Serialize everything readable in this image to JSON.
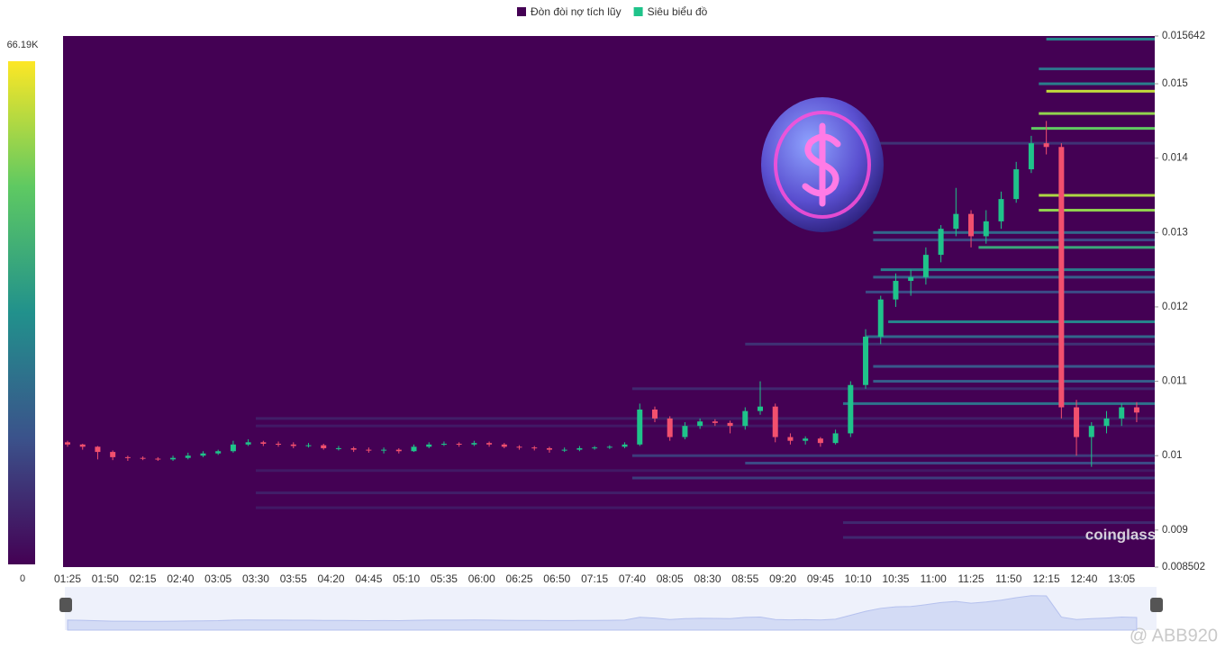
{
  "chart_data": {
    "type": "candlestick-heatmap",
    "legend": [
      {
        "name": "Đòn đòi nợ tích lũy",
        "color": "#440154"
      },
      {
        "name": "Siêu biểu đồ",
        "color": "#1fc38a"
      }
    ],
    "colorbar_lim": [
      0,
      66190
    ],
    "colorbar_ticks": [
      {
        "value": 66190,
        "label": "66.19K"
      },
      0
    ],
    "colormap": [
      "#440154",
      "#3b528b",
      "#21918c",
      "#5ec962",
      "#fde725"
    ],
    "ylim": [
      0.008502,
      0.015642
    ],
    "yticks": [
      0.015642,
      0.015,
      0.014,
      0.013,
      0.012,
      0.011,
      0.01,
      0.009,
      0.008502
    ],
    "xlim": [
      "01:22",
      "13:27"
    ],
    "xticks": [
      "01:25",
      "01:50",
      "02:15",
      "02:40",
      "03:05",
      "03:30",
      "03:55",
      "04:20",
      "04:45",
      "05:10",
      "05:35",
      "06:00",
      "06:25",
      "06:50",
      "07:15",
      "07:40",
      "08:05",
      "08:30",
      "08:55",
      "09:20",
      "09:45",
      "10:10",
      "10:35",
      "11:00",
      "11:25",
      "11:50",
      "12:15",
      "12:40",
      "13:05"
    ],
    "up_color": "#1fc38a",
    "down_color": "#f2506e",
    "x": [
      "01:25",
      "01:35",
      "01:45",
      "01:55",
      "02:05",
      "02:15",
      "02:25",
      "02:35",
      "02:45",
      "02:55",
      "03:05",
      "03:15",
      "03:25",
      "03:35",
      "03:45",
      "03:55",
      "04:05",
      "04:15",
      "04:25",
      "04:35",
      "04:45",
      "04:55",
      "05:05",
      "05:15",
      "05:25",
      "05:35",
      "05:45",
      "05:55",
      "06:05",
      "06:15",
      "06:25",
      "06:35",
      "06:45",
      "06:55",
      "07:05",
      "07:15",
      "07:25",
      "07:35",
      "07:45",
      "07:55",
      "08:05",
      "08:15",
      "08:25",
      "08:35",
      "08:45",
      "08:55",
      "09:05",
      "09:15",
      "09:25",
      "09:35",
      "09:45",
      "09:55",
      "10:05",
      "10:15",
      "10:25",
      "10:35",
      "10:45",
      "10:55",
      "11:05",
      "11:15",
      "11:25",
      "11:35",
      "11:45",
      "11:55",
      "12:05",
      "12:15",
      "12:25",
      "12:35",
      "12:45",
      "12:55",
      "13:05",
      "13:15"
    ],
    "ohlc": [
      [
        0.01018,
        0.0102,
        0.01012,
        0.01015
      ],
      [
        0.01015,
        0.01016,
        0.01008,
        0.01012
      ],
      [
        0.01012,
        0.01013,
        0.00995,
        0.01005
      ],
      [
        0.01005,
        0.01007,
        0.00994,
        0.00998
      ],
      [
        0.00998,
        0.01,
        0.00993,
        0.00997
      ],
      [
        0.00997,
        0.00999,
        0.00994,
        0.00996
      ],
      [
        0.00996,
        0.00998,
        0.00993,
        0.00995
      ],
      [
        0.00995,
        0.01,
        0.00993,
        0.00997
      ],
      [
        0.00997,
        0.01004,
        0.00995,
        0.01
      ],
      [
        0.01,
        0.01006,
        0.00998,
        0.01003
      ],
      [
        0.01003,
        0.01008,
        0.01001,
        0.01006
      ],
      [
        0.01006,
        0.0102,
        0.01004,
        0.01015
      ],
      [
        0.01015,
        0.01022,
        0.01013,
        0.01018
      ],
      [
        0.01018,
        0.0102,
        0.01013,
        0.01016
      ],
      [
        0.01016,
        0.01019,
        0.01012,
        0.01015
      ],
      [
        0.01015,
        0.01018,
        0.0101,
        0.01013
      ],
      [
        0.01013,
        0.01017,
        0.01011,
        0.01014
      ],
      [
        0.01014,
        0.01016,
        0.01008,
        0.0101
      ],
      [
        0.0101,
        0.01013,
        0.01007,
        0.0101
      ],
      [
        0.0101,
        0.01012,
        0.01005,
        0.01008
      ],
      [
        0.01008,
        0.01011,
        0.01004,
        0.01007
      ],
      [
        0.01007,
        0.01011,
        0.01003,
        0.01008
      ],
      [
        0.01008,
        0.0101,
        0.01003,
        0.01006
      ],
      [
        0.01006,
        0.01015,
        0.01005,
        0.01012
      ],
      [
        0.01012,
        0.01018,
        0.0101,
        0.01015
      ],
      [
        0.01015,
        0.01019,
        0.01013,
        0.01016
      ],
      [
        0.01016,
        0.01018,
        0.01012,
        0.01015
      ],
      [
        0.01015,
        0.0102,
        0.01013,
        0.01017
      ],
      [
        0.01017,
        0.01019,
        0.01012,
        0.01015
      ],
      [
        0.01015,
        0.01017,
        0.0101,
        0.01012
      ],
      [
        0.01012,
        0.01014,
        0.01008,
        0.01011
      ],
      [
        0.01011,
        0.01013,
        0.01007,
        0.0101
      ],
      [
        0.0101,
        0.01012,
        0.01004,
        0.01008
      ],
      [
        0.01008,
        0.01011,
        0.01005,
        0.01008
      ],
      [
        0.01008,
        0.01013,
        0.01006,
        0.0101
      ],
      [
        0.0101,
        0.01013,
        0.01008,
        0.01011
      ],
      [
        0.01011,
        0.01014,
        0.01009,
        0.01012
      ],
      [
        0.01012,
        0.01018,
        0.0101,
        0.01015
      ],
      [
        0.01015,
        0.0107,
        0.01013,
        0.01062
      ],
      [
        0.01062,
        0.01066,
        0.01045,
        0.0105
      ],
      [
        0.0105,
        0.01053,
        0.0102,
        0.01025
      ],
      [
        0.01025,
        0.01045,
        0.01022,
        0.0104
      ],
      [
        0.0104,
        0.0105,
        0.01036,
        0.01046
      ],
      [
        0.01046,
        0.01049,
        0.0104,
        0.01044
      ],
      [
        0.01044,
        0.01047,
        0.0103,
        0.0104
      ],
      [
        0.0104,
        0.01065,
        0.01035,
        0.0106
      ],
      [
        0.0106,
        0.011,
        0.01055,
        0.01066
      ],
      [
        0.01066,
        0.0107,
        0.01018,
        0.01025
      ],
      [
        0.01025,
        0.0103,
        0.01015,
        0.0102
      ],
      [
        0.0102,
        0.01026,
        0.01015,
        0.01023
      ],
      [
        0.01023,
        0.01025,
        0.01012,
        0.01017
      ],
      [
        0.01017,
        0.01035,
        0.01015,
        0.0103
      ],
      [
        0.0103,
        0.011,
        0.01025,
        0.01095
      ],
      [
        0.01095,
        0.0117,
        0.0109,
        0.0116
      ],
      [
        0.0116,
        0.01215,
        0.0115,
        0.0121
      ],
      [
        0.0121,
        0.01245,
        0.012,
        0.01235
      ],
      [
        0.01235,
        0.0125,
        0.01215,
        0.0124
      ],
      [
        0.0124,
        0.0128,
        0.0123,
        0.0127
      ],
      [
        0.0127,
        0.0131,
        0.0126,
        0.01305
      ],
      [
        0.01305,
        0.0136,
        0.01295,
        0.01325
      ],
      [
        0.01325,
        0.0133,
        0.0128,
        0.01295
      ],
      [
        0.01295,
        0.0133,
        0.01285,
        0.01315
      ],
      [
        0.01315,
        0.01355,
        0.01305,
        0.01345
      ],
      [
        0.01345,
        0.01395,
        0.0134,
        0.01385
      ],
      [
        0.01385,
        0.0143,
        0.0138,
        0.0142
      ],
      [
        0.0142,
        0.0145,
        0.01405,
        0.01415
      ],
      [
        0.01415,
        0.0142,
        0.0105,
        0.01065
      ],
      [
        0.01065,
        0.01075,
        0.01,
        0.01025
      ],
      [
        0.01025,
        0.01045,
        0.00985,
        0.0104
      ],
      [
        0.0104,
        0.0106,
        0.0103,
        0.0105
      ],
      [
        0.0105,
        0.0107,
        0.0104,
        0.01065
      ],
      [
        0.01065,
        0.01072,
        0.01045,
        0.01058
      ]
    ],
    "levels": [
      {
        "price": 0.0156,
        "from": "12:15",
        "value": 30000
      },
      {
        "price": 0.0152,
        "from": "12:10",
        "value": 25000
      },
      {
        "price": 0.015,
        "from": "12:10",
        "value": 28000
      },
      {
        "price": 0.0149,
        "from": "12:15",
        "value": 60000
      },
      {
        "price": 0.0146,
        "from": "12:10",
        "value": 55000
      },
      {
        "price": 0.0144,
        "from": "12:05",
        "value": 50000
      },
      {
        "price": 0.0142,
        "from": "10:10",
        "value": 10000
      },
      {
        "price": 0.0135,
        "from": "12:10",
        "value": 58000
      },
      {
        "price": 0.0133,
        "from": "12:10",
        "value": 55000
      },
      {
        "price": 0.013,
        "from": "10:20",
        "value": 22000
      },
      {
        "price": 0.0129,
        "from": "10:20",
        "value": 15000
      },
      {
        "price": 0.0128,
        "from": "11:30",
        "value": 40000
      },
      {
        "price": 0.0125,
        "from": "10:25",
        "value": 28000
      },
      {
        "price": 0.0124,
        "from": "10:20",
        "value": 20000
      },
      {
        "price": 0.0122,
        "from": "10:15",
        "value": 15000
      },
      {
        "price": 0.0118,
        "from": "10:30",
        "value": 30000
      },
      {
        "price": 0.0116,
        "from": "10:15",
        "value": 22000
      },
      {
        "price": 0.0115,
        "from": "08:55",
        "value": 10000
      },
      {
        "price": 0.0112,
        "from": "10:20",
        "value": 18000
      },
      {
        "price": 0.011,
        "from": "10:20",
        "value": 20000
      },
      {
        "price": 0.0109,
        "from": "07:40",
        "value": 8000
      },
      {
        "price": 0.0107,
        "from": "10:00",
        "value": 25000
      },
      {
        "price": 0.0105,
        "from": "03:30",
        "value": 6000
      },
      {
        "price": 0.0104,
        "from": "03:30",
        "value": 5000
      },
      {
        "price": 0.01,
        "from": "07:40",
        "value": 12000
      },
      {
        "price": 0.0099,
        "from": "08:55",
        "value": 15000
      },
      {
        "price": 0.0098,
        "from": "03:30",
        "value": 5000
      },
      {
        "price": 0.0097,
        "from": "07:40",
        "value": 12000
      },
      {
        "price": 0.0095,
        "from": "03:30",
        "value": 6000
      },
      {
        "price": 0.0093,
        "from": "03:30",
        "value": 5000
      },
      {
        "price": 0.0091,
        "from": "10:00",
        "value": 8000
      },
      {
        "price": 0.0089,
        "from": "10:00",
        "value": 8000
      }
    ],
    "watermark": "coinglass",
    "credit": "@ ABB920"
  }
}
